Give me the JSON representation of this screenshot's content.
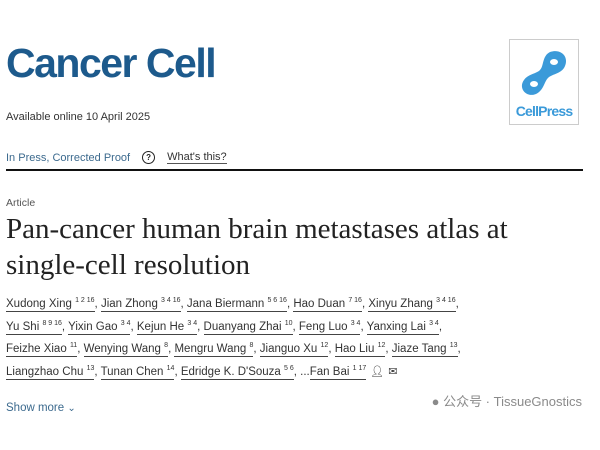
{
  "journal": {
    "name": "Cancer Cell",
    "publisher_logo_text": "CellPress",
    "logo_color": "#3b9ad9",
    "brand_color": "#1d5a8c"
  },
  "availability": "Available online 10 April 2025",
  "status": {
    "label": "In Press, Corrected Proof",
    "help_icon": "?",
    "whats_this": "What's this?"
  },
  "article": {
    "type": "Article",
    "title_lines": [
      "Pan-cancer human brain metastases atlas at",
      "single-cell resolution"
    ]
  },
  "authors": [
    [
      {
        "name": "Xudong Xing",
        "sup": "1 2 16"
      },
      {
        "name": "Jian Zhong",
        "sup": "3 4 16"
      },
      {
        "name": "Jana Biermann",
        "sup": "5 6 16"
      },
      {
        "name": "Hao Duan",
        "sup": "7 16"
      },
      {
        "name": "Xinyu Zhang",
        "sup": "3 4 16"
      }
    ],
    [
      {
        "name": "Yu Shi",
        "sup": "8 9 16"
      },
      {
        "name": "Yixin Gao",
        "sup": "3 4"
      },
      {
        "name": "Kejun He",
        "sup": "3 4"
      },
      {
        "name": "Duanyang Zhai",
        "sup": "10"
      },
      {
        "name": "Feng Luo",
        "sup": "3 4"
      },
      {
        "name": "Yanxing Lai",
        "sup": "3 4"
      }
    ],
    [
      {
        "name": "Feizhe Xiao",
        "sup": "11"
      },
      {
        "name": "Wenying Wang",
        "sup": "8"
      },
      {
        "name": "Mengru Wang",
        "sup": "8"
      },
      {
        "name": "Jianguo Xu",
        "sup": "12"
      },
      {
        "name": "Hao Liu",
        "sup": "12"
      },
      {
        "name": "Jiaze Tang",
        "sup": "13"
      }
    ],
    [
      {
        "name": "Liangzhao Chu",
        "sup": "13"
      },
      {
        "name": "Tunan Chen",
        "sup": "14"
      },
      {
        "name": "Edridge K. D'Souza",
        "sup": "5 6"
      },
      {
        "name": "Fan Bai",
        "sup": "1 17",
        "ellipsis": "...",
        "icons": [
          "person-icon",
          "email-icon"
        ]
      }
    ]
  ],
  "show_more": "Show more",
  "watermark": "公众号 · TissueGnostics"
}
